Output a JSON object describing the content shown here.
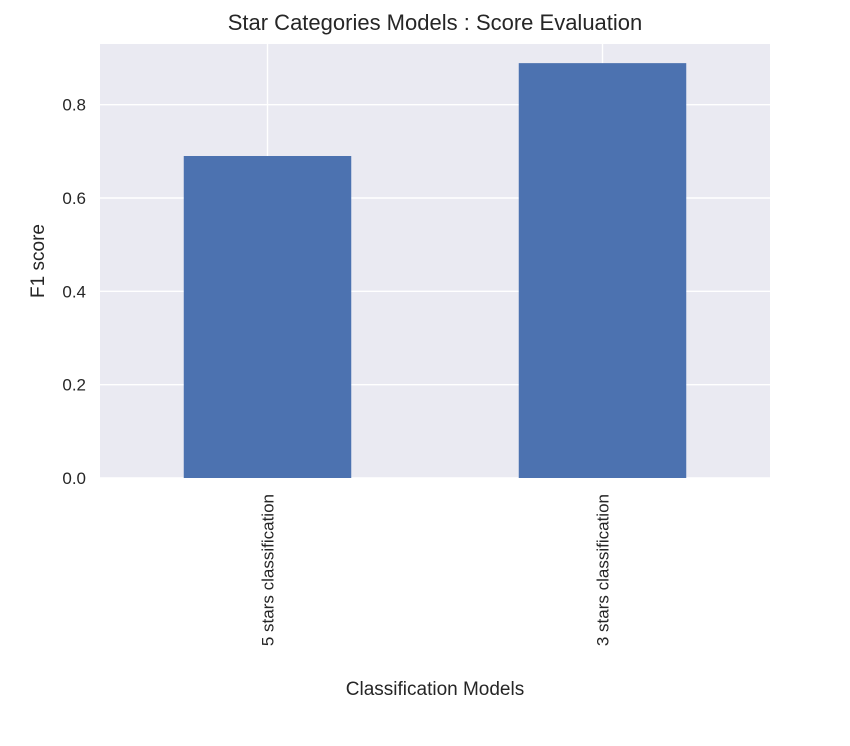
{
  "chart_data": {
    "type": "bar",
    "title": "Star Categories Models : Score Evaluation",
    "xlabel": "Classification Models",
    "ylabel": "F1 score",
    "categories": [
      "5 stars classification",
      "3 stars classification"
    ],
    "values": [
      0.69,
      0.889
    ],
    "ylim": [
      0,
      0.93
    ],
    "yticks": [
      0.0,
      0.2,
      0.4,
      0.6,
      0.8
    ],
    "ytick_labels": [
      "0.0",
      "0.2",
      "0.4",
      "0.6",
      "0.8"
    ],
    "grid": true,
    "legend": false,
    "colors": {
      "bar": "#4c72b0",
      "plot_background": "#eaeaf2",
      "grid": "#ffffff",
      "text": "#262626"
    }
  }
}
